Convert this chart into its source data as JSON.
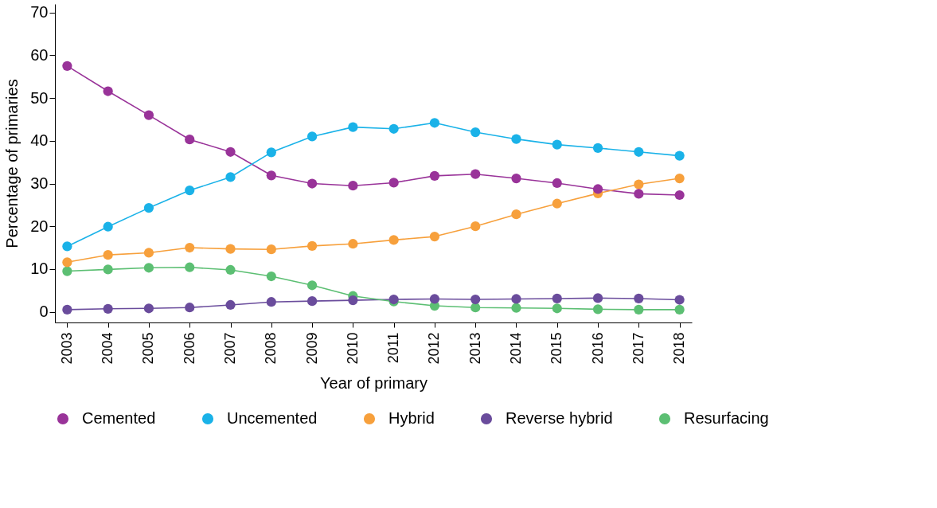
{
  "chart_data": {
    "type": "line",
    "xlabel": "Year of primary",
    "ylabel": "Percentage of primaries",
    "categories": [
      "2003",
      "2004",
      "2005",
      "2006",
      "2007",
      "2008",
      "2009",
      "2010",
      "2011",
      "2012",
      "2013",
      "2014",
      "2015",
      "2016",
      "2017",
      "2018"
    ],
    "series": [
      {
        "name": "Cemented",
        "color": "#993399",
        "values": [
          57.5,
          51.6,
          46.0,
          40.3,
          37.4,
          31.9,
          30.0,
          29.5,
          30.2,
          31.8,
          32.2,
          31.2,
          30.1,
          28.7,
          27.6,
          27.3
        ]
      },
      {
        "name": "Uncemented",
        "color": "#1ab2e8",
        "values": [
          15.3,
          19.9,
          24.3,
          28.4,
          31.5,
          37.3,
          41.0,
          43.2,
          42.8,
          44.2,
          42.0,
          40.4,
          39.1,
          38.3,
          37.4,
          36.5
        ]
      },
      {
        "name": "Hybrid",
        "color": "#f7a03c",
        "values": [
          11.6,
          13.3,
          13.8,
          15.0,
          14.7,
          14.6,
          15.4,
          15.9,
          16.8,
          17.6,
          20.0,
          22.8,
          25.3,
          27.7,
          29.8,
          31.2
        ]
      },
      {
        "name": "Reverse hybrid",
        "color": "#6a4c9c",
        "values": [
          0.5,
          0.7,
          0.8,
          1.0,
          1.6,
          2.3,
          2.5,
          2.7,
          2.9,
          3.0,
          2.9,
          3.0,
          3.1,
          3.2,
          3.1,
          2.8
        ]
      },
      {
        "name": "Resurfacing",
        "color": "#5cbf73",
        "values": [
          9.5,
          9.9,
          10.3,
          10.4,
          9.8,
          8.3,
          6.2,
          3.7,
          2.4,
          1.4,
          1.0,
          0.9,
          0.8,
          0.6,
          0.5,
          0.5
        ]
      }
    ],
    "ylim": [
      -2.5,
      72
    ],
    "yticks": [
      0,
      10,
      20,
      30,
      40,
      50,
      60,
      70
    ],
    "grid": false,
    "legend": "bottom",
    "marker": "circle",
    "line_style": "solid"
  }
}
